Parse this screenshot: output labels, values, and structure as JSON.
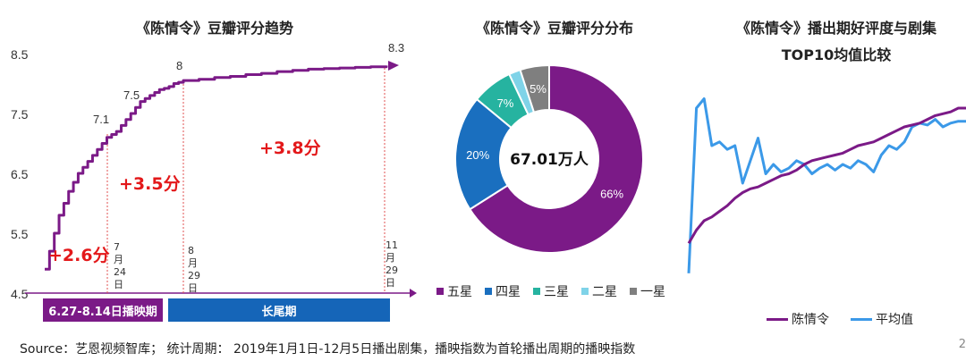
{
  "left": {
    "title": "《陈情令》豆瓣评分趋势",
    "y_ticks": [
      "8.5",
      "7.5",
      "6.5",
      "5.5",
      "4.5"
    ],
    "labels": {
      "v1": "7.1",
      "v2": "7.5",
      "v3": "8",
      "v4": "8.3"
    },
    "gains": {
      "g1": "+2.6分",
      "g2": "+3.5分",
      "g3": "+3.8分"
    },
    "dates": [
      [
        "7",
        "月",
        "24",
        "日"
      ],
      [
        "8",
        "月",
        "29",
        "日"
      ],
      [
        "11",
        "月",
        "29",
        "日"
      ]
    ],
    "phases": {
      "p1": "6.27-8.14日播映期",
      "p2": "长尾期"
    },
    "colors": {
      "line": "#7b1a87",
      "phase1": "#7b1a87",
      "phase2": "#1565b8",
      "gain": "#e3181a"
    }
  },
  "middle": {
    "title": "《陈情令》豆瓣评分分布",
    "center_label": "67.01万人",
    "legend": [
      "五星",
      "四星",
      "三星",
      "二星",
      "一星"
    ]
  },
  "right": {
    "title_line1": "《陈情令》播出期好评度与剧集",
    "title_line2": "TOP10均值比较",
    "legend": [
      "陈情令",
      "平均值"
    ]
  },
  "source": "Source：艺恩视频智库； 统计周期： 2019年1月1日-12月5日播出剧集，播映指数为首轮播出周期的播映指数",
  "page_number": "2",
  "chart_data": [
    {
      "type": "line",
      "title": "《陈情令》豆瓣评分趋势",
      "ylim": [
        4.5,
        8.5
      ],
      "y_ticks": [
        4.5,
        5.5,
        6.5,
        7.5,
        8.5
      ],
      "series": [
        {
          "values": [
            4.9,
            5.2,
            5.5,
            5.8,
            6.0,
            6.2,
            6.35,
            6.5,
            6.6,
            6.7,
            6.8,
            6.9,
            7.0,
            7.1,
            7.15,
            7.2,
            7.3,
            7.4,
            7.5,
            7.6,
            7.7,
            7.75,
            7.8,
            7.85,
            7.9,
            7.92,
            7.95,
            8.0,
            8.02,
            8.05,
            8.07,
            8.1,
            8.12,
            8.15,
            8.17,
            8.2,
            8.22,
            8.24,
            8.25,
            8.26,
            8.27,
            8.28,
            8.3
          ]
        }
      ],
      "annotations": [
        "7.1",
        "7.5",
        "8",
        "8.3",
        "+2.6分",
        "+3.5分",
        "+3.8分"
      ]
    },
    {
      "type": "pie",
      "title": "《陈情令》豆瓣评分分布",
      "categories": [
        "五星",
        "四星",
        "三星",
        "二星",
        "一星"
      ],
      "values": [
        66,
        20,
        7,
        2,
        5
      ],
      "labels": [
        "66%",
        "20%",
        "7%",
        "",
        "5%"
      ],
      "colors": [
        "#7b1a87",
        "#1a6fbf",
        "#26b3a0",
        "#7fd3e8",
        "#7f7f7f"
      ],
      "center_text": "67.01万人"
    },
    {
      "type": "line",
      "title": "《陈情令》播出期好评度与剧集TOP10均值比较",
      "series": [
        {
          "name": "陈情令",
          "color": "#7b1a87",
          "values": [
            0.18,
            0.25,
            0.3,
            0.32,
            0.35,
            0.38,
            0.42,
            0.45,
            0.47,
            0.48,
            0.5,
            0.52,
            0.54,
            0.55,
            0.57,
            0.6,
            0.62,
            0.63,
            0.64,
            0.65,
            0.66,
            0.68,
            0.7,
            0.71,
            0.72,
            0.74,
            0.76,
            0.78,
            0.8,
            0.81,
            0.82,
            0.84,
            0.86,
            0.87,
            0.88,
            0.9,
            0.9
          ]
        },
        {
          "name": "平均值",
          "color": "#3b99e8",
          "values": [
            0.02,
            0.9,
            0.95,
            0.7,
            0.72,
            0.68,
            0.7,
            0.5,
            0.62,
            0.74,
            0.55,
            0.6,
            0.56,
            0.58,
            0.62,
            0.6,
            0.55,
            0.58,
            0.6,
            0.57,
            0.6,
            0.58,
            0.62,
            0.6,
            0.56,
            0.65,
            0.7,
            0.68,
            0.72,
            0.8,
            0.82,
            0.81,
            0.84,
            0.8,
            0.82,
            0.83,
            0.83
          ]
        }
      ]
    }
  ]
}
